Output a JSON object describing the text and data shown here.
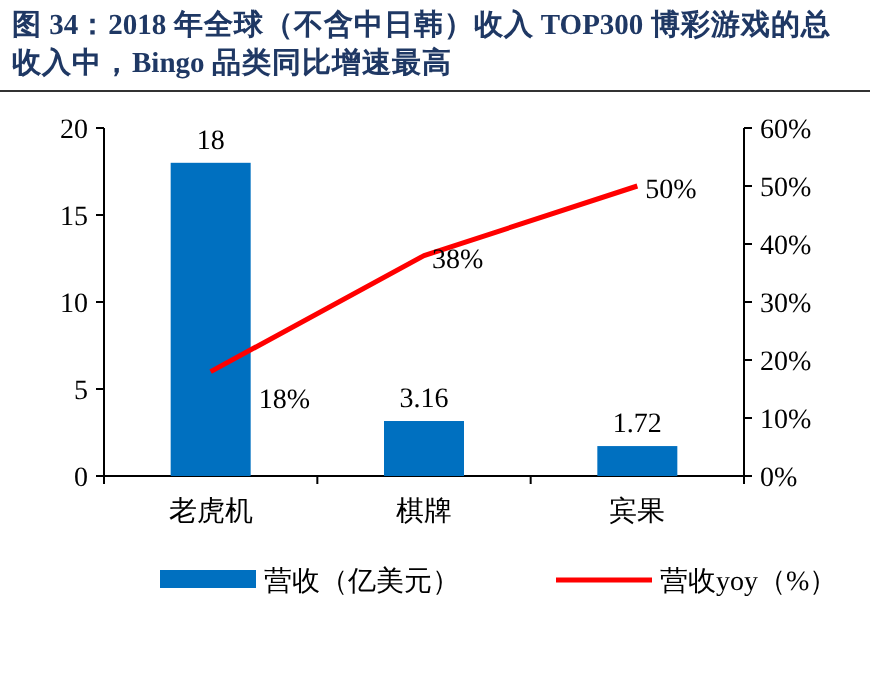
{
  "chart_data": {
    "type": "bar",
    "title": "图 34：2018 年全球（不含中日韩）收入 TOP300 博彩游戏的总收入中，Bingo 品类同比增速最高",
    "categories": [
      "老虎机",
      "棋牌",
      "宾果"
    ],
    "series": [
      {
        "name": "营收（亿美元）",
        "color": "#0070c0",
        "values": [
          18,
          3.16,
          1.72
        ],
        "value_labels": [
          "18",
          "3.16",
          "1.72"
        ]
      },
      {
        "name": "营收yoy（%）",
        "type": "line",
        "axis": "y2",
        "color": "#ff0000",
        "values": [
          18,
          38,
          50
        ],
        "value_labels": [
          "18%",
          "38%",
          "50%"
        ]
      }
    ],
    "ylim": [
      0,
      20
    ],
    "yticks": [
      0,
      5,
      10,
      15,
      20
    ],
    "y2lim": [
      0,
      60
    ],
    "y2ticks": [
      {
        "value": 0,
        "label": "0%"
      },
      {
        "value": 10,
        "label": "10%"
      },
      {
        "value": 20,
        "label": "20%"
      },
      {
        "value": 30,
        "label": "30%"
      },
      {
        "value": 40,
        "label": "40%"
      },
      {
        "value": 50,
        "label": "50%"
      },
      {
        "value": 60,
        "label": "60%"
      }
    ],
    "legend": "bottom",
    "grid": false,
    "marker": "none"
  }
}
